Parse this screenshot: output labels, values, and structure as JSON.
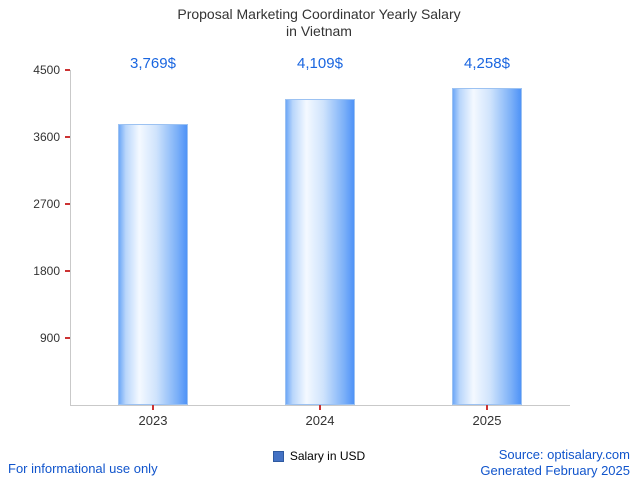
{
  "title": {
    "line1": "Proposal Marketing Coordinator Yearly Salary",
    "line2": "in Vietnam"
  },
  "chart_data": {
    "type": "bar",
    "title": "Proposal Marketing Coordinator Yearly Salary in Vietnam",
    "categories": [
      "2023",
      "2024",
      "2025"
    ],
    "values": [
      3769,
      4109,
      4258
    ],
    "value_labels": [
      "3,769$",
      "4,109$",
      "4,258$"
    ],
    "series": [
      {
        "name": "Salary in USD",
        "values": [
          3769,
          4109,
          4258
        ]
      }
    ],
    "xlabel": "",
    "ylabel": "",
    "ylim": [
      0,
      4500
    ],
    "yticks": [
      4500,
      3600,
      2700,
      1800,
      900
    ],
    "grid": false,
    "legend_position": "bottom",
    "bar_gradient": [
      "#6ea8f7",
      "#f4f9ff",
      "#4f93f7"
    ],
    "value_label_color": "#1a66e0",
    "tick_color": "#cc3333",
    "axis_color": "#c9c9c9"
  },
  "legend": {
    "label": "Salary in USD",
    "swatch_color": "#4472c4"
  },
  "footer": {
    "left": "For informational use only",
    "source": "Source: optisalary.com",
    "generated": "Generated February 2025",
    "link_color": "#1155cc"
  }
}
